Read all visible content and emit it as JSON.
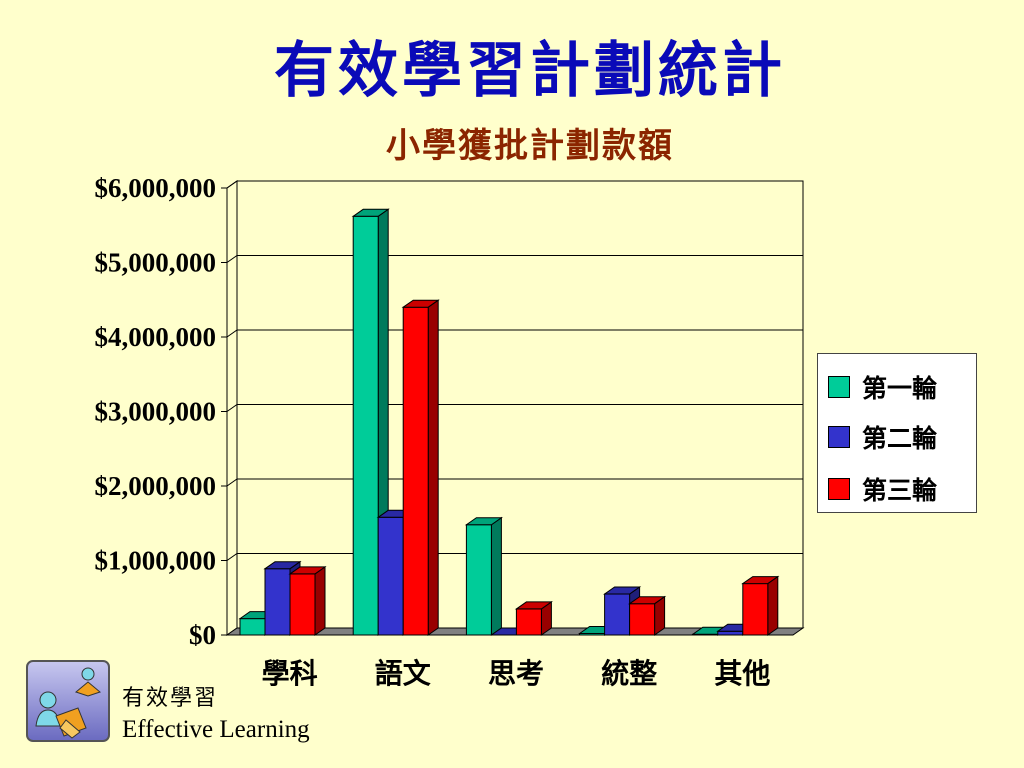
{
  "title": "有效學習計劃統計",
  "subtitle": "小學獲批計劃款額",
  "chart_data": {
    "type": "bar",
    "categories": [
      "學科",
      "語文",
      "思考",
      "統整",
      "其他"
    ],
    "series": [
      {
        "name": "第一輪",
        "color": "#00CC99",
        "values": [
          220000,
          5620000,
          1480000,
          20000,
          10000
        ]
      },
      {
        "name": "第二輪",
        "color": "#3333CC",
        "values": [
          890000,
          1580000,
          0,
          550000,
          50000
        ]
      },
      {
        "name": "第三輪",
        "color": "#FF0000",
        "values": [
          820000,
          4400000,
          350000,
          420000,
          690000
        ]
      }
    ],
    "yticks": [
      "$0",
      "$1,000,000",
      "$2,000,000",
      "$3,000,000",
      "$4,000,000",
      "$5,000,000",
      "$6,000,000"
    ],
    "ylim": [
      0,
      6000000
    ],
    "grid": true,
    "legend_position": "right",
    "three_d": true
  },
  "footer": {
    "chinese": "有效學習",
    "english": "Effective Learning"
  }
}
